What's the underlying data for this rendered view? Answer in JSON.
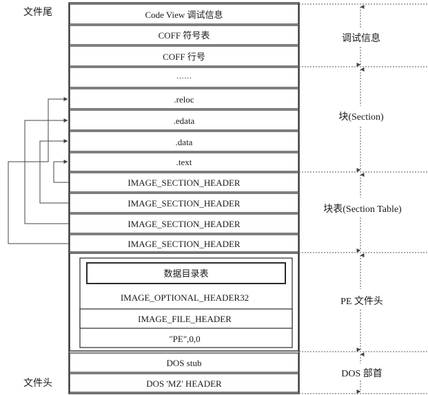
{
  "side_labels": {
    "top": "文件尾",
    "bottom": "文件头"
  },
  "rows": [
    "Code View 调试信息",
    "COFF 符号表",
    "COFF 行号",
    "……",
    ".reloc",
    ".edata",
    ".data",
    ".text",
    "IMAGE_SECTION_HEADER",
    "IMAGE_SECTION_HEADER",
    "IMAGE_SECTION_HEADER",
    "IMAGE_SECTION_HEADER"
  ],
  "pe_header": {
    "data_directory": "数据目录表",
    "optional_header": "IMAGE_OPTIONAL_HEADER32",
    "file_header": "IMAGE_FILE_HEADER",
    "signature": "\"PE\",0,0"
  },
  "dos_rows": [
    "DOS stub",
    "DOS 'MZ' HEADER"
  ],
  "groups": [
    "调试信息",
    "块(Section)",
    "块表(Section Table)",
    "PE 文件头",
    "DOS 部首"
  ]
}
